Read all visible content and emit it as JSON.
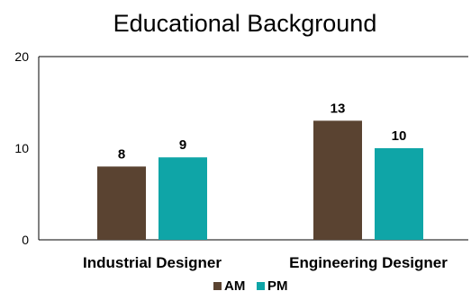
{
  "chart_data": {
    "type": "bar",
    "title": "Educational Background",
    "categories": [
      "Industrial Designer",
      "Engineering Designer"
    ],
    "series": [
      {
        "name": "AM",
        "values": [
          8,
          13
        ],
        "color": "#5a4331"
      },
      {
        "name": "PM",
        "values": [
          9,
          10
        ],
        "color": "#0fa5a7"
      }
    ],
    "ylim": [
      0,
      20
    ],
    "yticks": [
      0,
      10,
      20
    ],
    "xlabel": "",
    "ylabel": "",
    "grid": false,
    "data_labels": true,
    "legend": "bottom"
  }
}
